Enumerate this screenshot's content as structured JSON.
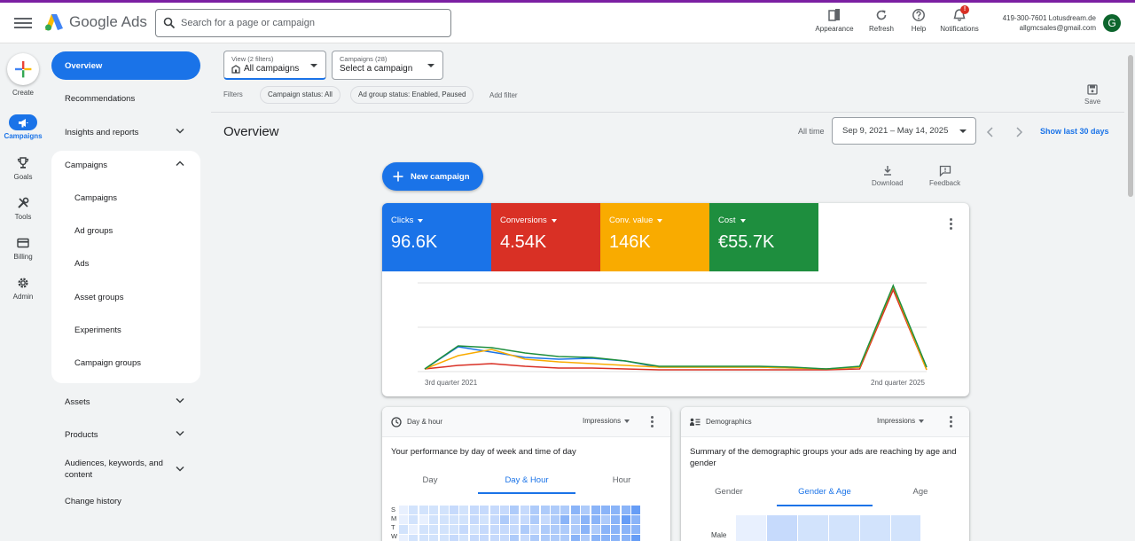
{
  "app": {
    "name": "Google Ads"
  },
  "search": {
    "placeholder": "Search for a page or campaign"
  },
  "header_actions": [
    {
      "label": "Appearance",
      "icon": "appearance-icon"
    },
    {
      "label": "Refresh",
      "icon": "refresh-icon"
    },
    {
      "label": "Help",
      "icon": "help-icon"
    },
    {
      "label": "Notifications",
      "icon": "bell-icon",
      "badge": "!"
    }
  ],
  "account": {
    "customer": "419-300-7601 Lotusdream.de",
    "email": "allgmcsales@gmail.com",
    "avatar_letter": "G"
  },
  "rail": [
    {
      "label": "Create",
      "icon": "plus-icon"
    },
    {
      "label": "Campaigns",
      "icon": "megaphone-icon",
      "active": true
    },
    {
      "label": "Goals",
      "icon": "trophy-icon"
    },
    {
      "label": "Tools",
      "icon": "tools-icon"
    },
    {
      "label": "Billing",
      "icon": "card-icon"
    },
    {
      "label": "Admin",
      "icon": "gear-icon"
    }
  ],
  "sidebar": {
    "items": [
      {
        "label": "Overview",
        "active": true
      },
      {
        "label": "Recommendations"
      },
      {
        "label": "Insights and reports"
      },
      {
        "label": "Campaigns"
      },
      {
        "label": "Assets"
      },
      {
        "label": "Products"
      },
      {
        "label": "Audiences, keywords, and content"
      },
      {
        "label": "Change history"
      }
    ],
    "campaign_sub": [
      "Campaigns",
      "Ad groups",
      "Ads",
      "Asset groups",
      "Experiments",
      "Campaign groups"
    ]
  },
  "toolbar": {
    "view_small": "View (2 filters)",
    "view_value": "All campaigns",
    "campaigns_small": "Campaigns (28)",
    "campaigns_value": "Select a campaign",
    "filters_label": "Filters",
    "chips": [
      "Campaign status: All",
      "Ad group status: Enabled, Paused"
    ],
    "add_filter": "Add filter",
    "save": "Save"
  },
  "page": {
    "title": "Overview",
    "all_time": "All time",
    "date_range": "Sep 9, 2021 – May 14, 2025",
    "show_last": "Show last 30 days",
    "new_campaign": "New campaign",
    "download": "Download",
    "feedback": "Feedback"
  },
  "metrics": [
    {
      "label": "Clicks",
      "value": "96.6K",
      "color": "#1a73e8"
    },
    {
      "label": "Conversions",
      "value": "4.54K",
      "color": "#d93025"
    },
    {
      "label": "Conv. value",
      "value": "146K",
      "color": "#f9ab00"
    },
    {
      "label": "Cost",
      "value": "€55.7K",
      "color": "#1e8e3e"
    }
  ],
  "chart_data": {
    "type": "line",
    "x_labels": [
      "3rd quarter 2021",
      "2nd quarter 2025"
    ],
    "x": [
      0,
      1,
      2,
      3,
      4,
      5,
      6,
      7,
      8,
      9,
      10,
      11,
      12,
      13,
      14,
      15
    ],
    "grid": true,
    "series": [
      {
        "color": "#1a73e8",
        "values": [
          0.03,
          0.28,
          0.22,
          0.16,
          0.14,
          0.15,
          0.12,
          0.05,
          0.05,
          0.05,
          0.05,
          0.04,
          0.03,
          0.05,
          0.95,
          0.05
        ]
      },
      {
        "color": "#d93025",
        "values": [
          0.03,
          0.07,
          0.09,
          0.06,
          0.04,
          0.04,
          0.03,
          0.02,
          0.02,
          0.02,
          0.02,
          0.02,
          0.02,
          0.03,
          0.92,
          0.02
        ]
      },
      {
        "color": "#f9ab00",
        "values": [
          0.03,
          0.18,
          0.25,
          0.14,
          0.11,
          0.09,
          0.07,
          0.05,
          0.05,
          0.05,
          0.05,
          0.04,
          0.03,
          0.05,
          0.96,
          0.02
        ]
      },
      {
        "color": "#1e8e3e",
        "values": [
          0.03,
          0.29,
          0.27,
          0.21,
          0.17,
          0.16,
          0.12,
          0.06,
          0.06,
          0.06,
          0.06,
          0.05,
          0.03,
          0.06,
          0.97,
          0.05
        ]
      }
    ]
  },
  "day_hour": {
    "title": "Day & hour",
    "metric": "Impressions",
    "description": "Your performance by day of week and time of day",
    "tabs": [
      "Day",
      "Day & Hour",
      "Hour"
    ],
    "active_tab": 1,
    "day_letters": [
      "S",
      "M",
      "T",
      "W"
    ]
  },
  "demographics": {
    "title": "Demographics",
    "metric": "Impressions",
    "description": "Summary of the demographic groups your ads are reaching by age and gender",
    "tabs": [
      "Gender",
      "Gender & Age",
      "Age"
    ],
    "active_tab": 1,
    "row_label": "Male"
  }
}
